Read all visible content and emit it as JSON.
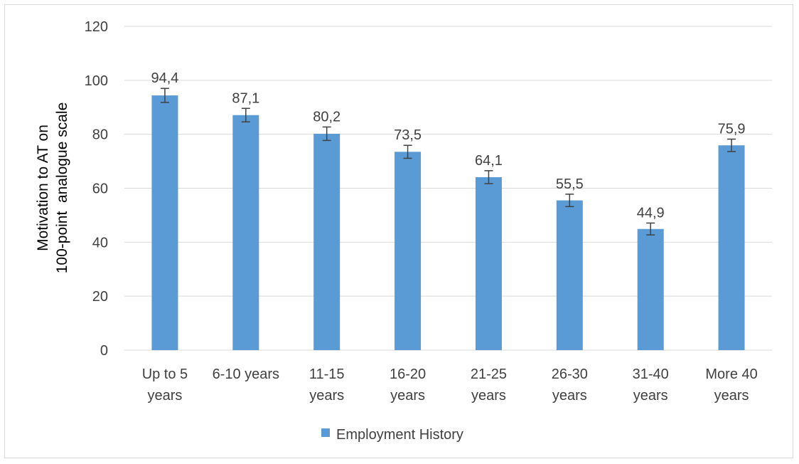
{
  "chart_data": {
    "type": "bar",
    "categories": [
      [
        "Up to 5",
        "years"
      ],
      [
        "6-10 years"
      ],
      [
        "11-15",
        "years"
      ],
      [
        "16-20",
        "years"
      ],
      [
        "21-25",
        "years"
      ],
      [
        "26-30",
        "years"
      ],
      [
        "31-40",
        "years"
      ],
      [
        "More 40",
        "years"
      ]
    ],
    "series": [
      {
        "name": "Employment History",
        "values": [
          94.4,
          87.1,
          80.2,
          73.5,
          64.1,
          55.5,
          44.9,
          75.9
        ],
        "value_labels": [
          "94,4",
          "87,1",
          "80,2",
          "73,5",
          "64,1",
          "55,5",
          "44,9",
          "75,9"
        ],
        "error": [
          2.6,
          2.5,
          2.5,
          2.4,
          2.4,
          2.3,
          2.2,
          2.3
        ],
        "color": "#5b9bd5"
      }
    ],
    "title": "",
    "xlabel": "",
    "ylabel": [
      "Motivation to AT on",
      "100-point  analogue scale"
    ],
    "ylim": [
      0,
      120
    ],
    "yticks": [
      0,
      20,
      40,
      60,
      80,
      100,
      120
    ],
    "grid": true,
    "legend_position": "bottom",
    "colors": {
      "bar": "#5b9bd5",
      "grid": "#d9d9d9",
      "error_bar": "#404040",
      "text": "#404040"
    }
  }
}
